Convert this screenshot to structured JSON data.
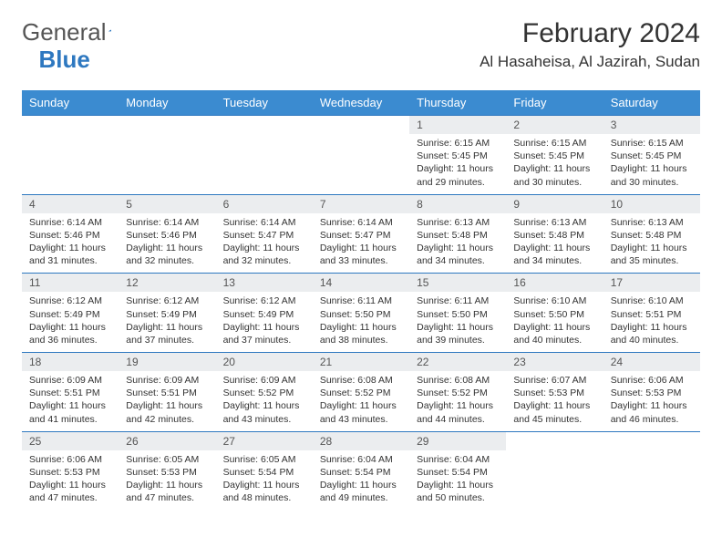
{
  "logo": {
    "word1": "General",
    "word2": "Blue"
  },
  "title": "February 2024",
  "location": "Al Hasaheisa, Al Jazirah, Sudan",
  "weekdays": [
    "Sunday",
    "Monday",
    "Tuesday",
    "Wednesday",
    "Thursday",
    "Friday",
    "Saturday"
  ],
  "colors": {
    "header_bg": "#3b8bd0",
    "header_text": "#ffffff",
    "row_band": "#ebedef",
    "text": "#333333",
    "rule": "#2e78c0"
  },
  "days": [
    null,
    null,
    null,
    null,
    {
      "n": "1",
      "sunrise": "6:15 AM",
      "sunset": "5:45 PM",
      "daylight": "11 hours and 29 minutes."
    },
    {
      "n": "2",
      "sunrise": "6:15 AM",
      "sunset": "5:45 PM",
      "daylight": "11 hours and 30 minutes."
    },
    {
      "n": "3",
      "sunrise": "6:15 AM",
      "sunset": "5:45 PM",
      "daylight": "11 hours and 30 minutes."
    },
    {
      "n": "4",
      "sunrise": "6:14 AM",
      "sunset": "5:46 PM",
      "daylight": "11 hours and 31 minutes."
    },
    {
      "n": "5",
      "sunrise": "6:14 AM",
      "sunset": "5:46 PM",
      "daylight": "11 hours and 32 minutes."
    },
    {
      "n": "6",
      "sunrise": "6:14 AM",
      "sunset": "5:47 PM",
      "daylight": "11 hours and 32 minutes."
    },
    {
      "n": "7",
      "sunrise": "6:14 AM",
      "sunset": "5:47 PM",
      "daylight": "11 hours and 33 minutes."
    },
    {
      "n": "8",
      "sunrise": "6:13 AM",
      "sunset": "5:48 PM",
      "daylight": "11 hours and 34 minutes."
    },
    {
      "n": "9",
      "sunrise": "6:13 AM",
      "sunset": "5:48 PM",
      "daylight": "11 hours and 34 minutes."
    },
    {
      "n": "10",
      "sunrise": "6:13 AM",
      "sunset": "5:48 PM",
      "daylight": "11 hours and 35 minutes."
    },
    {
      "n": "11",
      "sunrise": "6:12 AM",
      "sunset": "5:49 PM",
      "daylight": "11 hours and 36 minutes."
    },
    {
      "n": "12",
      "sunrise": "6:12 AM",
      "sunset": "5:49 PM",
      "daylight": "11 hours and 37 minutes."
    },
    {
      "n": "13",
      "sunrise": "6:12 AM",
      "sunset": "5:49 PM",
      "daylight": "11 hours and 37 minutes."
    },
    {
      "n": "14",
      "sunrise": "6:11 AM",
      "sunset": "5:50 PM",
      "daylight": "11 hours and 38 minutes."
    },
    {
      "n": "15",
      "sunrise": "6:11 AM",
      "sunset": "5:50 PM",
      "daylight": "11 hours and 39 minutes."
    },
    {
      "n": "16",
      "sunrise": "6:10 AM",
      "sunset": "5:50 PM",
      "daylight": "11 hours and 40 minutes."
    },
    {
      "n": "17",
      "sunrise": "6:10 AM",
      "sunset": "5:51 PM",
      "daylight": "11 hours and 40 minutes."
    },
    {
      "n": "18",
      "sunrise": "6:09 AM",
      "sunset": "5:51 PM",
      "daylight": "11 hours and 41 minutes."
    },
    {
      "n": "19",
      "sunrise": "6:09 AM",
      "sunset": "5:51 PM",
      "daylight": "11 hours and 42 minutes."
    },
    {
      "n": "20",
      "sunrise": "6:09 AM",
      "sunset": "5:52 PM",
      "daylight": "11 hours and 43 minutes."
    },
    {
      "n": "21",
      "sunrise": "6:08 AM",
      "sunset": "5:52 PM",
      "daylight": "11 hours and 43 minutes."
    },
    {
      "n": "22",
      "sunrise": "6:08 AM",
      "sunset": "5:52 PM",
      "daylight": "11 hours and 44 minutes."
    },
    {
      "n": "23",
      "sunrise": "6:07 AM",
      "sunset": "5:53 PM",
      "daylight": "11 hours and 45 minutes."
    },
    {
      "n": "24",
      "sunrise": "6:06 AM",
      "sunset": "5:53 PM",
      "daylight": "11 hours and 46 minutes."
    },
    {
      "n": "25",
      "sunrise": "6:06 AM",
      "sunset": "5:53 PM",
      "daylight": "11 hours and 47 minutes."
    },
    {
      "n": "26",
      "sunrise": "6:05 AM",
      "sunset": "5:53 PM",
      "daylight": "11 hours and 47 minutes."
    },
    {
      "n": "27",
      "sunrise": "6:05 AM",
      "sunset": "5:54 PM",
      "daylight": "11 hours and 48 minutes."
    },
    {
      "n": "28",
      "sunrise": "6:04 AM",
      "sunset": "5:54 PM",
      "daylight": "11 hours and 49 minutes."
    },
    {
      "n": "29",
      "sunrise": "6:04 AM",
      "sunset": "5:54 PM",
      "daylight": "11 hours and 50 minutes."
    },
    null,
    null
  ],
  "labels": {
    "sunrise": "Sunrise:",
    "sunset": "Sunset:",
    "daylight": "Daylight:"
  }
}
